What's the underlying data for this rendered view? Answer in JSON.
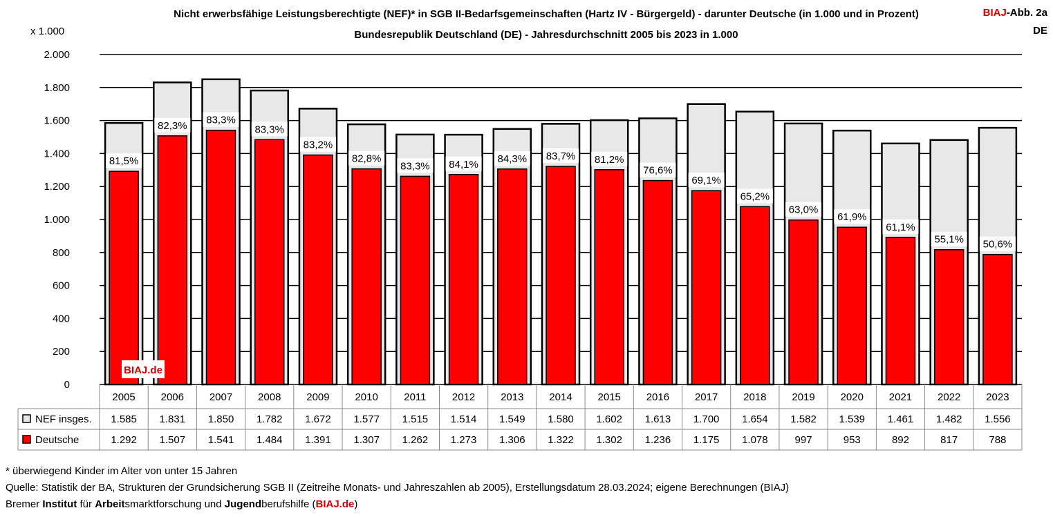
{
  "title_line1": "Nicht erwerbsfähige Leistungsberechtigte (NEF)* in SGB II-Bedarfsgemeinschaften (Hartz IV - Bürgergeld) - darunter Deutsche (in 1.000 und in Prozent)",
  "title_line2": "Bundesrepublik Deutschland (DE) - Jahresdurchschnitt 2005 bis 2023 in 1.000",
  "figure_id": {
    "brand": "BIAJ",
    "suffix": "-Abb. 2a",
    "region": "DE"
  },
  "unit_label": "x 1.000",
  "watermark": "BIAJ.de",
  "colors": {
    "total": "#e8e8e8",
    "deutsche": "#ff0000",
    "brand": "#d40000"
  },
  "chart_data": {
    "type": "bar",
    "categories": [
      "2005",
      "2006",
      "2007",
      "2008",
      "2009",
      "2010",
      "2011",
      "2012",
      "2013",
      "2014",
      "2015",
      "2016",
      "2017",
      "2018",
      "2019",
      "2020",
      "2021",
      "2022",
      "2023"
    ],
    "ylim": [
      0,
      2000
    ],
    "yticks": [
      0,
      200,
      400,
      600,
      800,
      1000,
      1200,
      1400,
      1600,
      1800,
      2000
    ],
    "ytick_labels": [
      "0",
      "200",
      "400",
      "600",
      "800",
      "1.000",
      "1.200",
      "1.400",
      "1.600",
      "1.800",
      "2.000"
    ],
    "grid": true,
    "series": [
      {
        "name": "NEF insges.",
        "values": [
          1585,
          1831,
          1850,
          1782,
          1672,
          1577,
          1515,
          1514,
          1549,
          1580,
          1602,
          1613,
          1700,
          1654,
          1582,
          1539,
          1461,
          1482,
          1556
        ],
        "table_labels": [
          "1.585",
          "1.831",
          "1.850",
          "1.782",
          "1.672",
          "1.577",
          "1.515",
          "1.514",
          "1.549",
          "1.580",
          "1.602",
          "1.613",
          "1.700",
          "1.654",
          "1.582",
          "1.539",
          "1.461",
          "1.482",
          "1.556"
        ]
      },
      {
        "name": "Deutsche",
        "values": [
          1292,
          1507,
          1541,
          1484,
          1391,
          1307,
          1262,
          1273,
          1306,
          1322,
          1302,
          1236,
          1175,
          1078,
          997,
          953,
          892,
          817,
          788
        ],
        "table_labels": [
          "1.292",
          "1.507",
          "1.541",
          "1.484",
          "1.391",
          "1.307",
          "1.262",
          "1.273",
          "1.306",
          "1.322",
          "1.302",
          "1.236",
          "1.175",
          "1.078",
          "997",
          "953",
          "892",
          "817",
          "788"
        ]
      }
    ],
    "percent_labels": [
      "81,5%",
      "82,3%",
      "83,3%",
      "83,3%",
      "83,2%",
      "82,8%",
      "83,3%",
      "84,1%",
      "84,3%",
      "83,7%",
      "81,2%",
      "76,6%",
      "69,1%",
      "65,2%",
      "63,0%",
      "61,9%",
      "61,1%",
      "55,1%",
      "50,6%"
    ]
  },
  "footnotes": {
    "line1": "* überwiegend Kinder im Alter von unter 15 Jahren",
    "line2": "Quelle: Statistik der BA, Strukturen der Grundsicherung SGB II (Zeitreihe Monats- und Jahreszahlen ab 2005), Erstellungsdatum 28.03.2024; eigene Berechnungen (BIAJ)",
    "line3": [
      {
        "t": "Bremer ",
        "b": false
      },
      {
        "t": "Institut",
        "b": true
      },
      {
        "t": " für ",
        "b": false
      },
      {
        "t": "Arbeit",
        "b": true
      },
      {
        "t": "smarktforschung und ",
        "b": false
      },
      {
        "t": "Jugend",
        "b": true
      },
      {
        "t": "berufshilfe (",
        "b": false
      },
      {
        "t": "BIAJ.de",
        "b": true,
        "red": true
      },
      {
        "t": ")",
        "b": false
      }
    ]
  }
}
